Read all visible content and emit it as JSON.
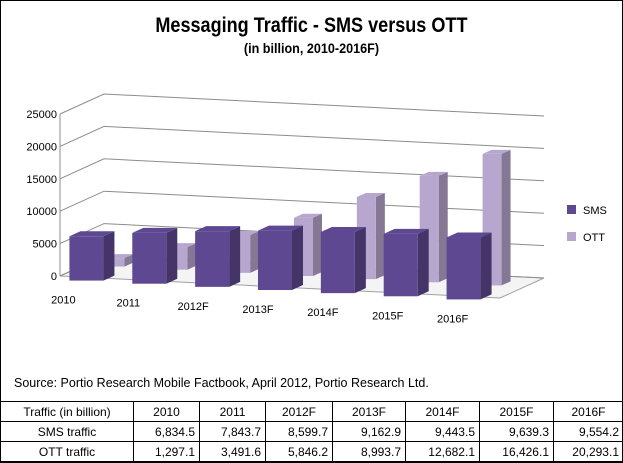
{
  "colors": {
    "sms": "#5e4891",
    "ott": "#b7a7cf",
    "grid": "#8c8c8c",
    "background": "#ffffff"
  },
  "chart_data": {
    "type": "bar",
    "variant": "3d-clustered-column",
    "title": "Messaging Traffic - SMS versus OTT",
    "subtitle": "(in billion, 2010-2016F)",
    "categories": [
      "2010",
      "2011",
      "2012F",
      "2013F",
      "2014F",
      "2015F",
      "2016F"
    ],
    "series": [
      {
        "name": "SMS",
        "values": [
          6834.5,
          7843.7,
          8599.7,
          9162.9,
          9443.5,
          9639.3,
          9554.2
        ]
      },
      {
        "name": "OTT",
        "values": [
          1297.1,
          3491.6,
          5846.2,
          8993.7,
          12682.1,
          16426.1,
          20293.1
        ]
      }
    ],
    "ylim": [
      0,
      25000
    ],
    "yticks": [
      "0",
      "5000",
      "10000",
      "15000",
      "20000",
      "25000"
    ],
    "grid": true,
    "legend_position": "right"
  },
  "source": "Source: Portio Research Mobile Factbook, April 2012,  Portio Research Ltd.",
  "table": {
    "header": [
      "Traffic (in billion)",
      "2010",
      "2011",
      "2012F",
      "2013F",
      "2014F",
      "2015F",
      "2016F"
    ],
    "rows": [
      [
        "SMS traffic",
        "6,834.5",
        "7,843.7",
        "8,599.7",
        "9,162.9",
        "9,443.5",
        "9,639.3",
        "9,554.2"
      ],
      [
        "OTT traffic",
        "1,297.1",
        "3,491.6",
        "5,846.2",
        "8,993.7",
        "12,682.1",
        "16,426.1",
        "20,293.1"
      ]
    ]
  }
}
